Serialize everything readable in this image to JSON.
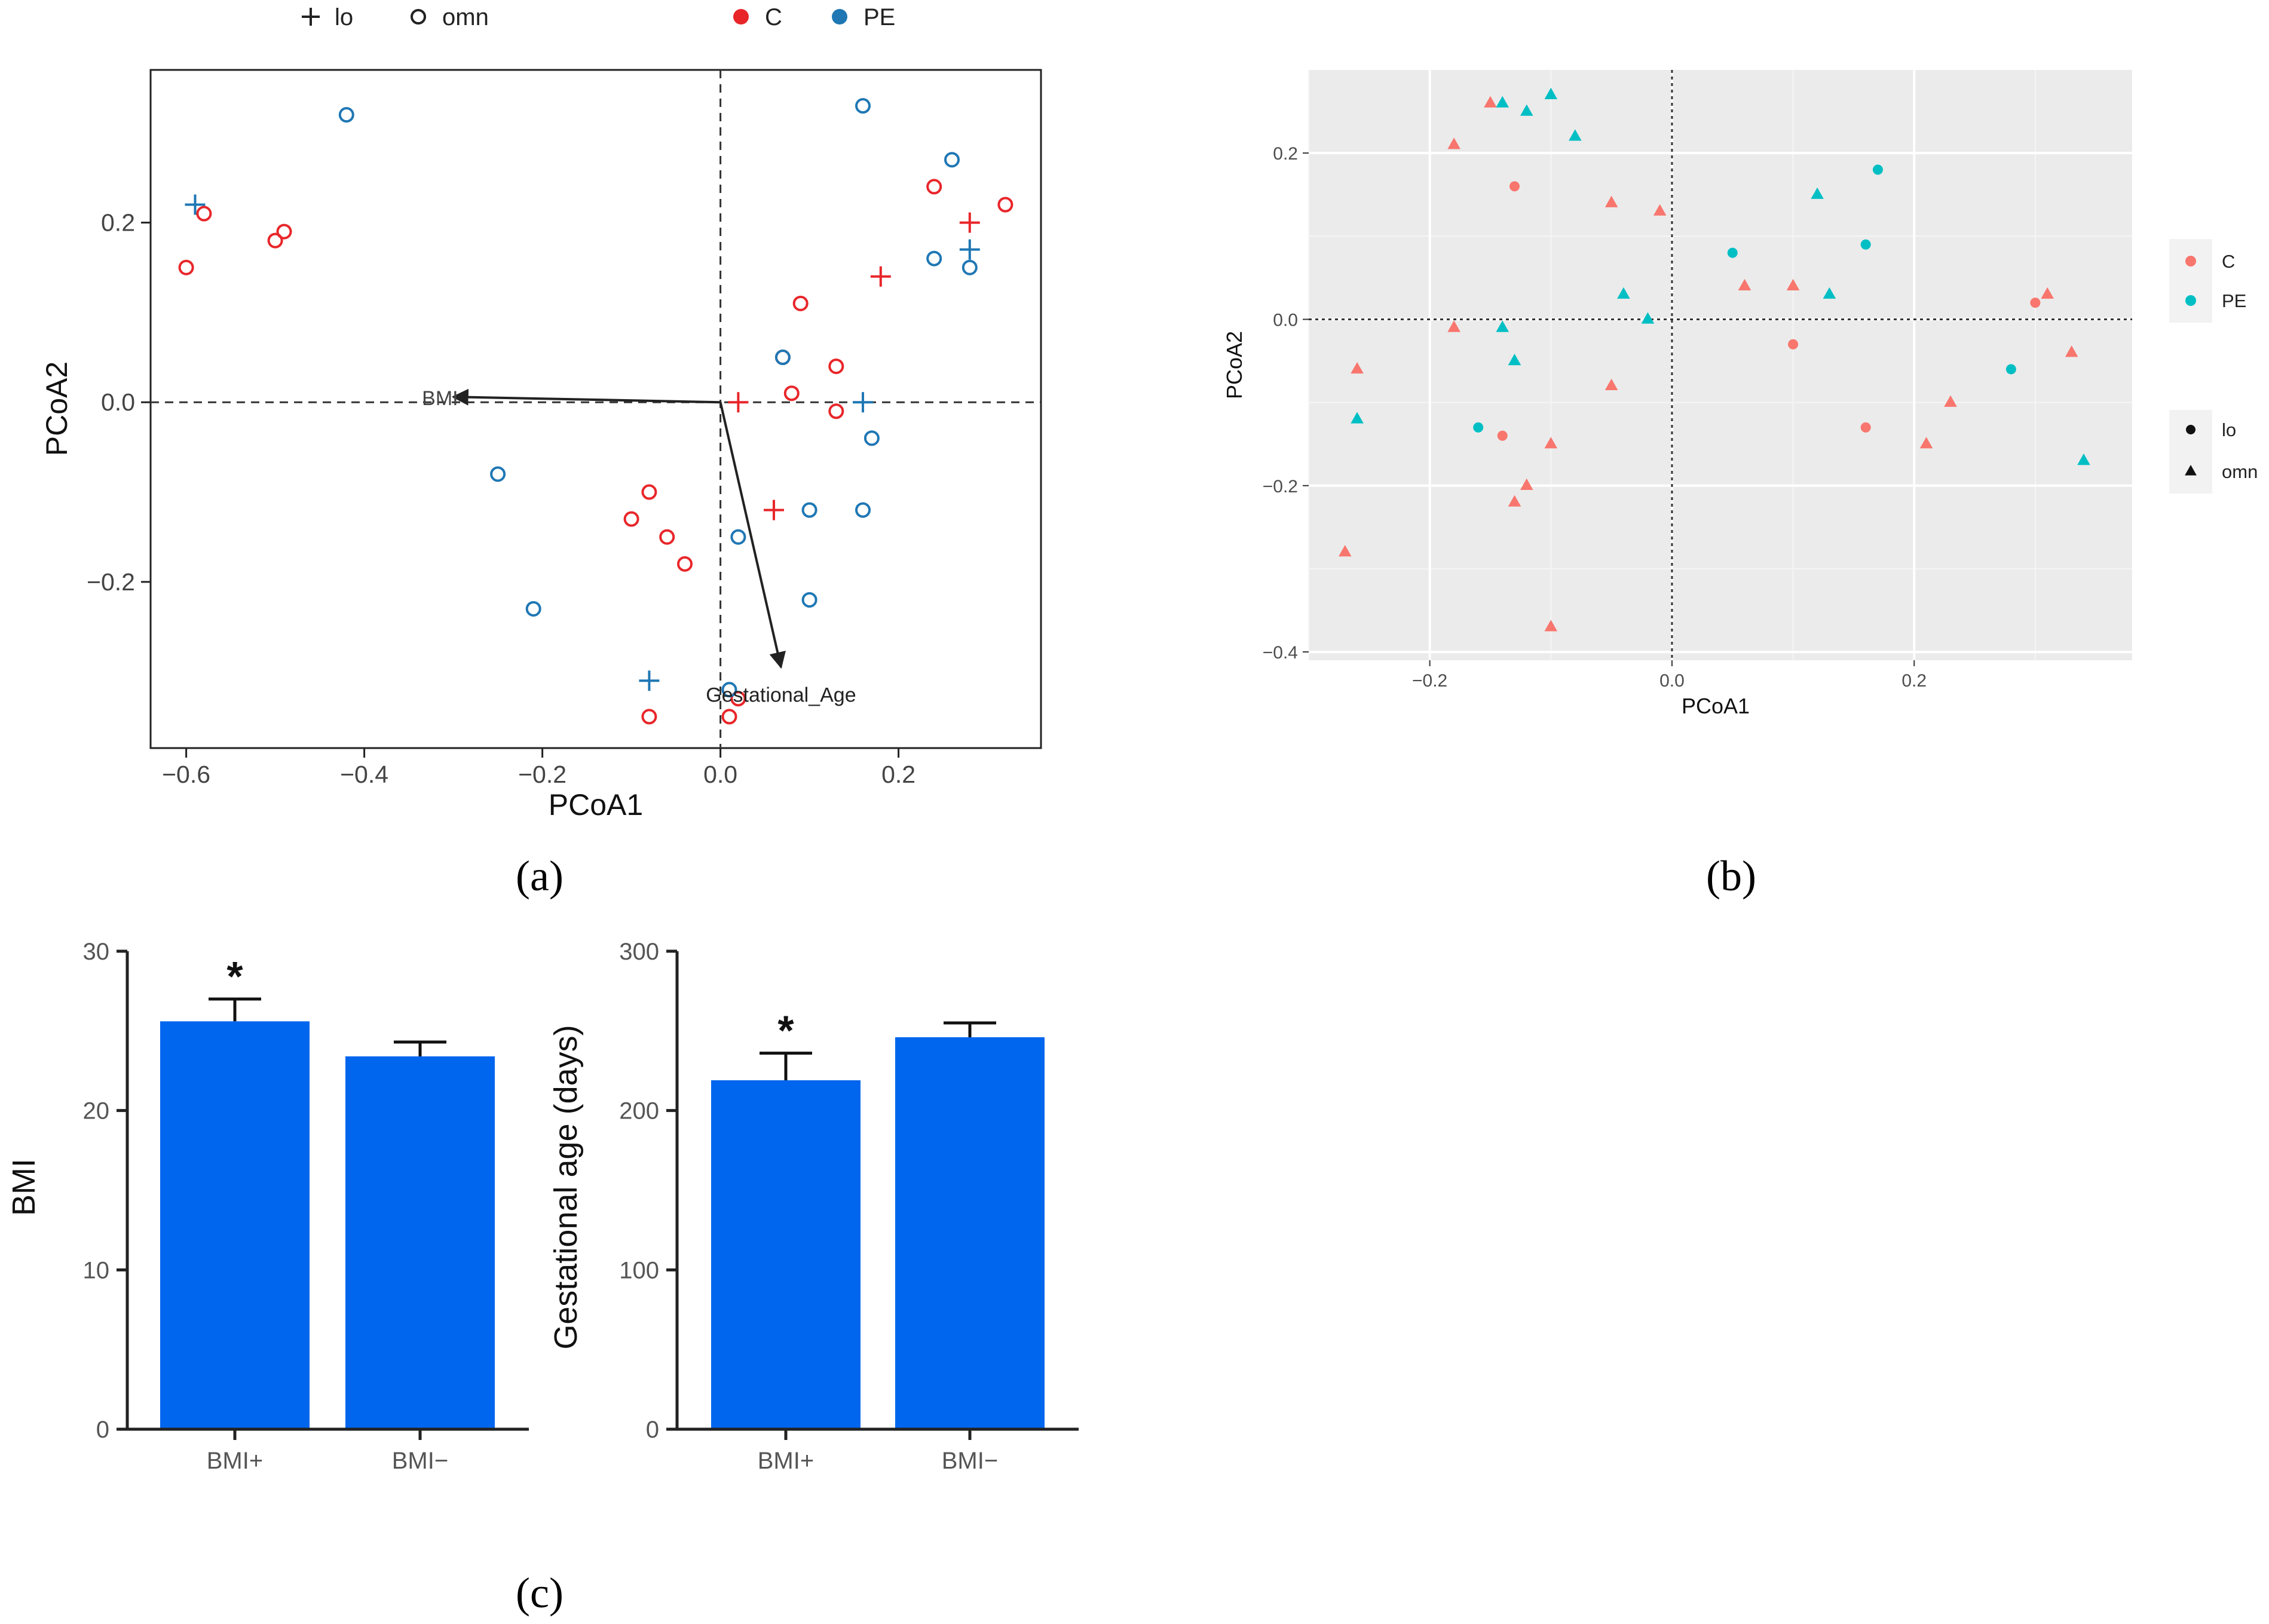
{
  "captions": {
    "a": "(a)",
    "b": "(b)",
    "c": "(c)"
  },
  "colors": {
    "red": "#e8262a",
    "blue": "#1f77b4",
    "b_red": "#f8766d",
    "b_teal": "#00bfc4",
    "bar": "#0066ee"
  },
  "chart_data": [
    {
      "panel": "a",
      "type": "scatter",
      "xlabel": "PCoA1",
      "ylabel": "PCoA2",
      "xlim": [
        -0.64,
        0.36
      ],
      "ylim": [
        -0.385,
        0.37
      ],
      "xticks": [
        -0.6,
        -0.4,
        -0.2,
        0.0,
        0.2
      ],
      "xtick_labels": [
        "−0.6",
        "−0.4",
        "−0.2",
        "0.0",
        "0.2"
      ],
      "yticks": [
        -0.2,
        0.0,
        0.2
      ],
      "ytick_labels": [
        "−0.2",
        "0.0",
        "0.2"
      ],
      "legend_shapes": [
        {
          "label": "lo",
          "marker": "plus"
        },
        {
          "label": "omn",
          "marker": "circle"
        }
      ],
      "legend_groups": [
        {
          "label": "C",
          "color": "#e8262a"
        },
        {
          "label": "PE",
          "color": "#1f77b4"
        }
      ],
      "legend_position": "top",
      "points": [
        {
          "x": -0.6,
          "y": 0.15,
          "group": "C",
          "shape": "omn"
        },
        {
          "x": -0.58,
          "y": 0.21,
          "group": "C",
          "shape": "omn"
        },
        {
          "x": -0.49,
          "y": 0.19,
          "group": "C",
          "shape": "omn"
        },
        {
          "x": -0.5,
          "y": 0.18,
          "group": "C",
          "shape": "omn"
        },
        {
          "x": -0.42,
          "y": 0.32,
          "group": "PE",
          "shape": "omn"
        },
        {
          "x": -0.59,
          "y": 0.22,
          "group": "PE",
          "shape": "lo"
        },
        {
          "x": -0.25,
          "y": -0.08,
          "group": "PE",
          "shape": "omn"
        },
        {
          "x": -0.21,
          "y": -0.23,
          "group": "PE",
          "shape": "omn"
        },
        {
          "x": -0.08,
          "y": -0.1,
          "group": "C",
          "shape": "omn"
        },
        {
          "x": -0.1,
          "y": -0.13,
          "group": "C",
          "shape": "omn"
        },
        {
          "x": -0.06,
          "y": -0.15,
          "group": "C",
          "shape": "omn"
        },
        {
          "x": -0.04,
          "y": -0.18,
          "group": "C",
          "shape": "omn"
        },
        {
          "x": -0.08,
          "y": -0.31,
          "group": "PE",
          "shape": "lo"
        },
        {
          "x": -0.08,
          "y": -0.35,
          "group": "C",
          "shape": "omn"
        },
        {
          "x": 0.01,
          "y": -0.35,
          "group": "C",
          "shape": "omn"
        },
        {
          "x": 0.02,
          "y": -0.33,
          "group": "C",
          "shape": "omn"
        },
        {
          "x": 0.01,
          "y": -0.32,
          "group": "PE",
          "shape": "omn"
        },
        {
          "x": 0.02,
          "y": -0.15,
          "group": "PE",
          "shape": "omn"
        },
        {
          "x": 0.02,
          "y": 0.0,
          "group": "C",
          "shape": "lo"
        },
        {
          "x": 0.06,
          "y": -0.12,
          "group": "C",
          "shape": "lo"
        },
        {
          "x": 0.07,
          "y": 0.05,
          "group": "C",
          "shape": "omn"
        },
        {
          "x": 0.07,
          "y": 0.05,
          "group": "PE",
          "shape": "omn"
        },
        {
          "x": 0.08,
          "y": 0.01,
          "group": "C",
          "shape": "omn"
        },
        {
          "x": 0.09,
          "y": 0.11,
          "group": "C",
          "shape": "omn"
        },
        {
          "x": 0.1,
          "y": -0.12,
          "group": "PE",
          "shape": "omn"
        },
        {
          "x": 0.1,
          "y": -0.22,
          "group": "PE",
          "shape": "omn"
        },
        {
          "x": 0.13,
          "y": 0.04,
          "group": "C",
          "shape": "omn"
        },
        {
          "x": 0.13,
          "y": -0.01,
          "group": "C",
          "shape": "omn"
        },
        {
          "x": 0.16,
          "y": -0.12,
          "group": "PE",
          "shape": "omn"
        },
        {
          "x": 0.16,
          "y": 0.33,
          "group": "PE",
          "shape": "omn"
        },
        {
          "x": 0.16,
          "y": 0.0,
          "group": "PE",
          "shape": "lo"
        },
        {
          "x": 0.17,
          "y": -0.04,
          "group": "PE",
          "shape": "omn"
        },
        {
          "x": 0.18,
          "y": 0.14,
          "group": "C",
          "shape": "lo"
        },
        {
          "x": 0.24,
          "y": 0.24,
          "group": "C",
          "shape": "omn"
        },
        {
          "x": 0.24,
          "y": 0.16,
          "group": "PE",
          "shape": "omn"
        },
        {
          "x": 0.26,
          "y": 0.27,
          "group": "PE",
          "shape": "omn"
        },
        {
          "x": 0.28,
          "y": 0.2,
          "group": "C",
          "shape": "lo"
        },
        {
          "x": 0.28,
          "y": 0.15,
          "group": "PE",
          "shape": "omn"
        },
        {
          "x": 0.28,
          "y": 0.17,
          "group": "PE",
          "shape": "lo"
        },
        {
          "x": 0.32,
          "y": 0.22,
          "group": "C",
          "shape": "omn"
        }
      ],
      "arrows": [
        {
          "label": "BMI",
          "x": -0.3,
          "y": 0.006
        },
        {
          "label": "Gestational_Age",
          "x": 0.068,
          "y": -0.295
        }
      ]
    },
    {
      "panel": "b",
      "type": "scatter",
      "xlabel": "PCoA1",
      "ylabel": "PCoA2",
      "xlim": [
        -0.3,
        0.38
      ],
      "ylim": [
        -0.41,
        0.3
      ],
      "xticks": [
        -0.2,
        0.0,
        0.2
      ],
      "xtick_labels": [
        "−0.2",
        "0.0",
        "0.2"
      ],
      "yticks": [
        -0.4,
        -0.2,
        0.0,
        0.2
      ],
      "ytick_labels": [
        "−0.4",
        "−0.2",
        "0.0",
        "0.2"
      ],
      "legend_groups": [
        {
          "label": "C",
          "color": "#f8766d"
        },
        {
          "label": "PE",
          "color": "#00bfc4"
        }
      ],
      "legend_shapes": [
        {
          "label": "lo",
          "marker": "dot"
        },
        {
          "label": "omn",
          "marker": "triangle"
        }
      ],
      "legend_position": "right",
      "points": [
        {
          "x": -0.15,
          "y": 0.26,
          "group": "C",
          "shape": "omn"
        },
        {
          "x": -0.14,
          "y": 0.26,
          "group": "PE",
          "shape": "omn"
        },
        {
          "x": -0.1,
          "y": 0.27,
          "group": "PE",
          "shape": "omn"
        },
        {
          "x": -0.12,
          "y": 0.25,
          "group": "PE",
          "shape": "omn"
        },
        {
          "x": -0.08,
          "y": 0.22,
          "group": "PE",
          "shape": "omn"
        },
        {
          "x": -0.18,
          "y": 0.21,
          "group": "C",
          "shape": "omn"
        },
        {
          "x": -0.13,
          "y": 0.16,
          "group": "C",
          "shape": "lo"
        },
        {
          "x": -0.05,
          "y": 0.14,
          "group": "C",
          "shape": "omn"
        },
        {
          "x": -0.01,
          "y": 0.13,
          "group": "C",
          "shape": "omn"
        },
        {
          "x": 0.12,
          "y": 0.15,
          "group": "PE",
          "shape": "omn"
        },
        {
          "x": 0.17,
          "y": 0.18,
          "group": "PE",
          "shape": "lo"
        },
        {
          "x": 0.16,
          "y": 0.09,
          "group": "PE",
          "shape": "lo"
        },
        {
          "x": 0.05,
          "y": 0.08,
          "group": "PE",
          "shape": "lo"
        },
        {
          "x": 0.06,
          "y": 0.04,
          "group": "C",
          "shape": "omn"
        },
        {
          "x": 0.1,
          "y": 0.04,
          "group": "C",
          "shape": "omn"
        },
        {
          "x": 0.13,
          "y": 0.03,
          "group": "PE",
          "shape": "omn"
        },
        {
          "x": -0.04,
          "y": 0.03,
          "group": "PE",
          "shape": "omn"
        },
        {
          "x": -0.02,
          "y": 0.0,
          "group": "PE",
          "shape": "omn"
        },
        {
          "x": -0.18,
          "y": -0.01,
          "group": "C",
          "shape": "omn"
        },
        {
          "x": -0.14,
          "y": -0.01,
          "group": "PE",
          "shape": "omn"
        },
        {
          "x": -0.13,
          "y": -0.05,
          "group": "PE",
          "shape": "omn"
        },
        {
          "x": -0.26,
          "y": -0.06,
          "group": "C",
          "shape": "omn"
        },
        {
          "x": -0.26,
          "y": -0.12,
          "group": "PE",
          "shape": "omn"
        },
        {
          "x": -0.05,
          "y": -0.08,
          "group": "C",
          "shape": "omn"
        },
        {
          "x": -0.16,
          "y": -0.13,
          "group": "PE",
          "shape": "lo"
        },
        {
          "x": -0.14,
          "y": -0.14,
          "group": "C",
          "shape": "lo"
        },
        {
          "x": -0.1,
          "y": -0.15,
          "group": "C",
          "shape": "omn"
        },
        {
          "x": -0.12,
          "y": -0.2,
          "group": "C",
          "shape": "omn"
        },
        {
          "x": -0.13,
          "y": -0.22,
          "group": "C",
          "shape": "omn"
        },
        {
          "x": -0.27,
          "y": -0.28,
          "group": "C",
          "shape": "omn"
        },
        {
          "x": -0.1,
          "y": -0.37,
          "group": "C",
          "shape": "omn"
        },
        {
          "x": 0.1,
          "y": -0.03,
          "group": "C",
          "shape": "lo"
        },
        {
          "x": 0.16,
          "y": -0.13,
          "group": "C",
          "shape": "lo"
        },
        {
          "x": 0.21,
          "y": -0.15,
          "group": "C",
          "shape": "omn"
        },
        {
          "x": 0.23,
          "y": -0.1,
          "group": "C",
          "shape": "omn"
        },
        {
          "x": 0.28,
          "y": -0.06,
          "group": "PE",
          "shape": "lo"
        },
        {
          "x": 0.3,
          "y": 0.02,
          "group": "C",
          "shape": "lo"
        },
        {
          "x": 0.31,
          "y": 0.03,
          "group": "C",
          "shape": "omn"
        },
        {
          "x": 0.33,
          "y": -0.04,
          "group": "C",
          "shape": "omn"
        },
        {
          "x": 0.34,
          "y": -0.17,
          "group": "PE",
          "shape": "omn"
        }
      ]
    },
    {
      "panel": "c-left",
      "type": "bar",
      "categories": [
        "BMI+",
        "BMI−"
      ],
      "values": [
        25.6,
        23.4
      ],
      "errors": [
        1.4,
        0.9
      ],
      "significance": [
        "*",
        ""
      ],
      "ylabel": "BMI",
      "ylim": [
        0,
        30
      ],
      "yticks": [
        0,
        10,
        20,
        30
      ],
      "ytick_labels": [
        "0",
        "10",
        "20",
        "30"
      ]
    },
    {
      "panel": "c-right",
      "type": "bar",
      "categories": [
        "BMI+",
        "BMI−"
      ],
      "values": [
        219,
        246
      ],
      "errors": [
        17,
        9
      ],
      "significance": [
        "*",
        ""
      ],
      "ylabel": "Gestational age (days)",
      "ylim": [
        0,
        300
      ],
      "yticks": [
        0,
        100,
        200,
        300
      ],
      "ytick_labels": [
        "0",
        "100",
        "200",
        "300"
      ]
    }
  ]
}
